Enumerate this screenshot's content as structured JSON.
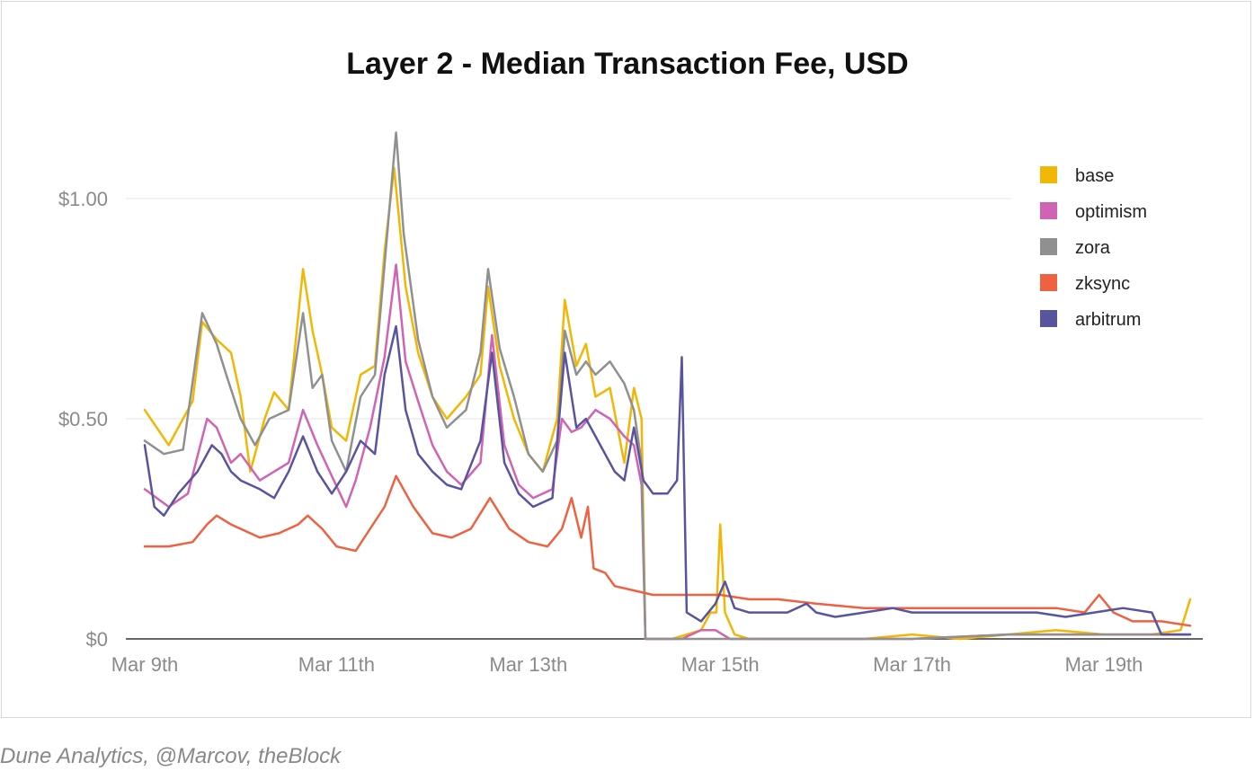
{
  "source_text": "Dune Analytics, @Marcov, theBlock",
  "chart_data": {
    "type": "line",
    "title": "Layer 2 - Median Transaction Fee, USD",
    "xlabel": "",
    "ylabel": "",
    "x_range": [
      "Mar 9th",
      "Mar 20th"
    ],
    "x_tick_labels": [
      "Mar 9th",
      "Mar 11th",
      "Mar 13th",
      "Mar 15th",
      "Mar 17th",
      "Mar 19th"
    ],
    "y_ticks": [
      0,
      0.5,
      1.0
    ],
    "y_tick_labels": [
      "$0",
      "$0.50",
      "$1.00"
    ],
    "ylim": [
      0,
      1.2
    ],
    "grid": "horizontal",
    "legend_position": "right",
    "series": [
      {
        "name": "base",
        "color": "#F2B705",
        "points": [
          [
            0,
            0.52
          ],
          [
            0.25,
            0.44
          ],
          [
            0.5,
            0.54
          ],
          [
            0.6,
            0.72
          ],
          [
            0.75,
            0.68
          ],
          [
            0.9,
            0.65
          ],
          [
            1.0,
            0.55
          ],
          [
            1.1,
            0.38
          ],
          [
            1.25,
            0.5
          ],
          [
            1.35,
            0.56
          ],
          [
            1.5,
            0.52
          ],
          [
            1.65,
            0.84
          ],
          [
            1.75,
            0.7
          ],
          [
            1.85,
            0.6
          ],
          [
            1.95,
            0.48
          ],
          [
            2.1,
            0.45
          ],
          [
            2.25,
            0.6
          ],
          [
            2.4,
            0.62
          ],
          [
            2.5,
            0.88
          ],
          [
            2.6,
            1.07
          ],
          [
            2.72,
            0.8
          ],
          [
            2.85,
            0.65
          ],
          [
            3.0,
            0.55
          ],
          [
            3.15,
            0.5
          ],
          [
            3.35,
            0.55
          ],
          [
            3.5,
            0.6
          ],
          [
            3.58,
            0.8
          ],
          [
            3.7,
            0.62
          ],
          [
            3.85,
            0.5
          ],
          [
            4.0,
            0.42
          ],
          [
            4.15,
            0.38
          ],
          [
            4.3,
            0.5
          ],
          [
            4.38,
            0.77
          ],
          [
            4.5,
            0.62
          ],
          [
            4.6,
            0.67
          ],
          [
            4.7,
            0.55
          ],
          [
            4.85,
            0.57
          ],
          [
            5.0,
            0.4
          ],
          [
            5.1,
            0.57
          ],
          [
            5.18,
            0.5
          ],
          [
            5.22,
            0.0
          ],
          [
            5.5,
            0.0
          ],
          [
            5.8,
            0.02
          ],
          [
            5.9,
            0.06
          ],
          [
            5.96,
            0.06
          ],
          [
            6.0,
            0.26
          ],
          [
            6.05,
            0.06
          ],
          [
            6.15,
            0.01
          ],
          [
            6.3,
            0.0
          ],
          [
            7.0,
            0.0
          ],
          [
            7.5,
            0.0
          ],
          [
            8.0,
            0.01
          ],
          [
            8.5,
            0.0
          ],
          [
            9.0,
            0.01
          ],
          [
            9.5,
            0.02
          ],
          [
            10.0,
            0.01
          ],
          [
            10.5,
            0.01
          ],
          [
            10.8,
            0.02
          ],
          [
            10.9,
            0.09
          ]
        ]
      },
      {
        "name": "optimism",
        "color": "#D063B3",
        "points": [
          [
            0,
            0.34
          ],
          [
            0.25,
            0.3
          ],
          [
            0.45,
            0.33
          ],
          [
            0.65,
            0.5
          ],
          [
            0.75,
            0.48
          ],
          [
            0.9,
            0.4
          ],
          [
            1.0,
            0.42
          ],
          [
            1.2,
            0.36
          ],
          [
            1.35,
            0.38
          ],
          [
            1.5,
            0.4
          ],
          [
            1.65,
            0.52
          ],
          [
            1.8,
            0.44
          ],
          [
            1.95,
            0.37
          ],
          [
            2.1,
            0.3
          ],
          [
            2.2,
            0.36
          ],
          [
            2.35,
            0.48
          ],
          [
            2.5,
            0.64
          ],
          [
            2.62,
            0.85
          ],
          [
            2.72,
            0.63
          ],
          [
            2.85,
            0.54
          ],
          [
            3.0,
            0.44
          ],
          [
            3.15,
            0.38
          ],
          [
            3.3,
            0.35
          ],
          [
            3.5,
            0.4
          ],
          [
            3.62,
            0.69
          ],
          [
            3.75,
            0.44
          ],
          [
            3.9,
            0.35
          ],
          [
            4.05,
            0.32
          ],
          [
            4.25,
            0.34
          ],
          [
            4.35,
            0.5
          ],
          [
            4.45,
            0.47
          ],
          [
            4.55,
            0.48
          ],
          [
            4.7,
            0.52
          ],
          [
            4.85,
            0.5
          ],
          [
            5.0,
            0.46
          ],
          [
            5.1,
            0.44
          ],
          [
            5.18,
            0.35
          ],
          [
            5.22,
            0.0
          ],
          [
            5.6,
            0.0
          ],
          [
            5.8,
            0.02
          ],
          [
            5.95,
            0.02
          ],
          [
            6.1,
            0.0
          ],
          [
            7.0,
            0.0
          ],
          [
            8.0,
            0.0
          ],
          [
            9.0,
            0.01
          ],
          [
            10.0,
            0.01
          ],
          [
            10.9,
            0.01
          ]
        ]
      },
      {
        "name": "zora",
        "color": "#909090",
        "points": [
          [
            0,
            0.45
          ],
          [
            0.2,
            0.42
          ],
          [
            0.4,
            0.43
          ],
          [
            0.6,
            0.74
          ],
          [
            0.75,
            0.67
          ],
          [
            0.85,
            0.6
          ],
          [
            1.0,
            0.5
          ],
          [
            1.15,
            0.44
          ],
          [
            1.3,
            0.5
          ],
          [
            1.5,
            0.52
          ],
          [
            1.65,
            0.74
          ],
          [
            1.75,
            0.57
          ],
          [
            1.85,
            0.6
          ],
          [
            1.95,
            0.45
          ],
          [
            2.1,
            0.38
          ],
          [
            2.25,
            0.55
          ],
          [
            2.4,
            0.6
          ],
          [
            2.5,
            0.85
          ],
          [
            2.62,
            1.15
          ],
          [
            2.7,
            0.92
          ],
          [
            2.85,
            0.68
          ],
          [
            3.0,
            0.55
          ],
          [
            3.15,
            0.48
          ],
          [
            3.35,
            0.52
          ],
          [
            3.5,
            0.65
          ],
          [
            3.58,
            0.84
          ],
          [
            3.7,
            0.66
          ],
          [
            3.85,
            0.55
          ],
          [
            4.0,
            0.42
          ],
          [
            4.15,
            0.38
          ],
          [
            4.3,
            0.45
          ],
          [
            4.38,
            0.7
          ],
          [
            4.5,
            0.6
          ],
          [
            4.6,
            0.63
          ],
          [
            4.7,
            0.6
          ],
          [
            4.85,
            0.63
          ],
          [
            5.0,
            0.58
          ],
          [
            5.1,
            0.52
          ],
          [
            5.18,
            0.4
          ],
          [
            5.22,
            0.0
          ],
          [
            6.0,
            0.0
          ],
          [
            7.0,
            0.0
          ],
          [
            8.0,
            0.0
          ],
          [
            9.0,
            0.01
          ],
          [
            9.5,
            0.01
          ],
          [
            10.0,
            0.01
          ],
          [
            10.5,
            0.01
          ],
          [
            10.9,
            0.01
          ]
        ]
      },
      {
        "name": "zksync",
        "color": "#EE6141",
        "points": [
          [
            0,
            0.21
          ],
          [
            0.25,
            0.21
          ],
          [
            0.5,
            0.22
          ],
          [
            0.65,
            0.26
          ],
          [
            0.75,
            0.28
          ],
          [
            0.9,
            0.26
          ],
          [
            1.0,
            0.25
          ],
          [
            1.2,
            0.23
          ],
          [
            1.4,
            0.24
          ],
          [
            1.6,
            0.26
          ],
          [
            1.7,
            0.28
          ],
          [
            1.85,
            0.25
          ],
          [
            2.0,
            0.21
          ],
          [
            2.2,
            0.2
          ],
          [
            2.35,
            0.25
          ],
          [
            2.5,
            0.3
          ],
          [
            2.62,
            0.37
          ],
          [
            2.8,
            0.3
          ],
          [
            3.0,
            0.24
          ],
          [
            3.2,
            0.23
          ],
          [
            3.4,
            0.25
          ],
          [
            3.6,
            0.32
          ],
          [
            3.8,
            0.25
          ],
          [
            4.0,
            0.22
          ],
          [
            4.2,
            0.21
          ],
          [
            4.35,
            0.25
          ],
          [
            4.45,
            0.32
          ],
          [
            4.55,
            0.23
          ],
          [
            4.62,
            0.3
          ],
          [
            4.68,
            0.16
          ],
          [
            4.8,
            0.15
          ],
          [
            4.9,
            0.12
          ],
          [
            5.1,
            0.11
          ],
          [
            5.3,
            0.1
          ],
          [
            5.6,
            0.1
          ],
          [
            5.8,
            0.1
          ],
          [
            6.0,
            0.1
          ],
          [
            6.3,
            0.09
          ],
          [
            6.6,
            0.09
          ],
          [
            7.0,
            0.08
          ],
          [
            7.5,
            0.07
          ],
          [
            8.0,
            0.07
          ],
          [
            8.5,
            0.07
          ],
          [
            9.0,
            0.07
          ],
          [
            9.5,
            0.07
          ],
          [
            9.8,
            0.06
          ],
          [
            9.95,
            0.1
          ],
          [
            10.1,
            0.06
          ],
          [
            10.3,
            0.04
          ],
          [
            10.6,
            0.04
          ],
          [
            10.9,
            0.03
          ]
        ]
      },
      {
        "name": "arbitrum",
        "color": "#59549E",
        "points": [
          [
            0,
            0.44
          ],
          [
            0.1,
            0.3
          ],
          [
            0.2,
            0.28
          ],
          [
            0.35,
            0.33
          ],
          [
            0.55,
            0.38
          ],
          [
            0.7,
            0.44
          ],
          [
            0.8,
            0.42
          ],
          [
            0.9,
            0.38
          ],
          [
            1.0,
            0.36
          ],
          [
            1.2,
            0.34
          ],
          [
            1.35,
            0.32
          ],
          [
            1.5,
            0.38
          ],
          [
            1.65,
            0.46
          ],
          [
            1.8,
            0.38
          ],
          [
            1.95,
            0.33
          ],
          [
            2.1,
            0.38
          ],
          [
            2.25,
            0.45
          ],
          [
            2.4,
            0.42
          ],
          [
            2.5,
            0.6
          ],
          [
            2.62,
            0.71
          ],
          [
            2.72,
            0.52
          ],
          [
            2.85,
            0.42
          ],
          [
            3.0,
            0.38
          ],
          [
            3.15,
            0.35
          ],
          [
            3.3,
            0.34
          ],
          [
            3.5,
            0.45
          ],
          [
            3.62,
            0.65
          ],
          [
            3.75,
            0.4
          ],
          [
            3.9,
            0.33
          ],
          [
            4.05,
            0.3
          ],
          [
            4.25,
            0.32
          ],
          [
            4.38,
            0.65
          ],
          [
            4.5,
            0.48
          ],
          [
            4.6,
            0.5
          ],
          [
            4.75,
            0.44
          ],
          [
            4.9,
            0.38
          ],
          [
            5.0,
            0.36
          ],
          [
            5.1,
            0.48
          ],
          [
            5.2,
            0.36
          ],
          [
            5.3,
            0.33
          ],
          [
            5.45,
            0.33
          ],
          [
            5.55,
            0.36
          ],
          [
            5.6,
            0.64
          ],
          [
            5.65,
            0.06
          ],
          [
            5.8,
            0.04
          ],
          [
            5.95,
            0.08
          ],
          [
            6.05,
            0.13
          ],
          [
            6.15,
            0.07
          ],
          [
            6.3,
            0.06
          ],
          [
            6.5,
            0.06
          ],
          [
            6.7,
            0.06
          ],
          [
            6.9,
            0.08
          ],
          [
            7.0,
            0.06
          ],
          [
            7.2,
            0.05
          ],
          [
            7.5,
            0.06
          ],
          [
            7.8,
            0.07
          ],
          [
            8.0,
            0.06
          ],
          [
            8.3,
            0.06
          ],
          [
            8.6,
            0.06
          ],
          [
            9.0,
            0.06
          ],
          [
            9.3,
            0.06
          ],
          [
            9.6,
            0.05
          ],
          [
            9.9,
            0.06
          ],
          [
            10.2,
            0.07
          ],
          [
            10.5,
            0.06
          ],
          [
            10.6,
            0.01
          ],
          [
            10.9,
            0.01
          ]
        ]
      }
    ]
  }
}
